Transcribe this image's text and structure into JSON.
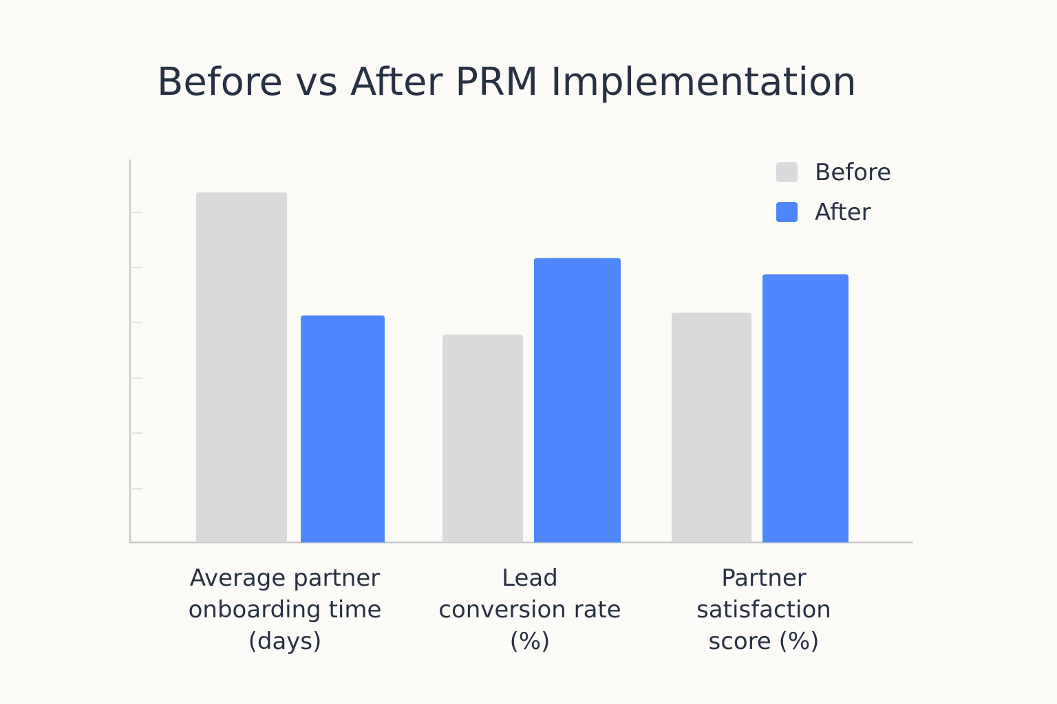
{
  "chart_data": {
    "type": "bar",
    "title": "Before vs After PRM Implementation",
    "categories": [
      [
        "Average partner",
        "onboarding time",
        "(days)"
      ],
      [
        "Lead",
        "conversion rate",
        "(%)"
      ],
      [
        "Partner",
        "satisfaction",
        "score (%)"
      ]
    ],
    "series": [
      {
        "name": "Before",
        "color": "#d9dadb",
        "values": [
          64,
          38,
          42
        ]
      },
      {
        "name": "After",
        "color": "#4f86fb",
        "values": [
          41.5,
          52,
          49
        ]
      }
    ],
    "ylim": [
      0,
      70
    ],
    "xlabel": "",
    "ylabel": "",
    "legend": "top-right",
    "axis_color": "#c8c8c8"
  }
}
